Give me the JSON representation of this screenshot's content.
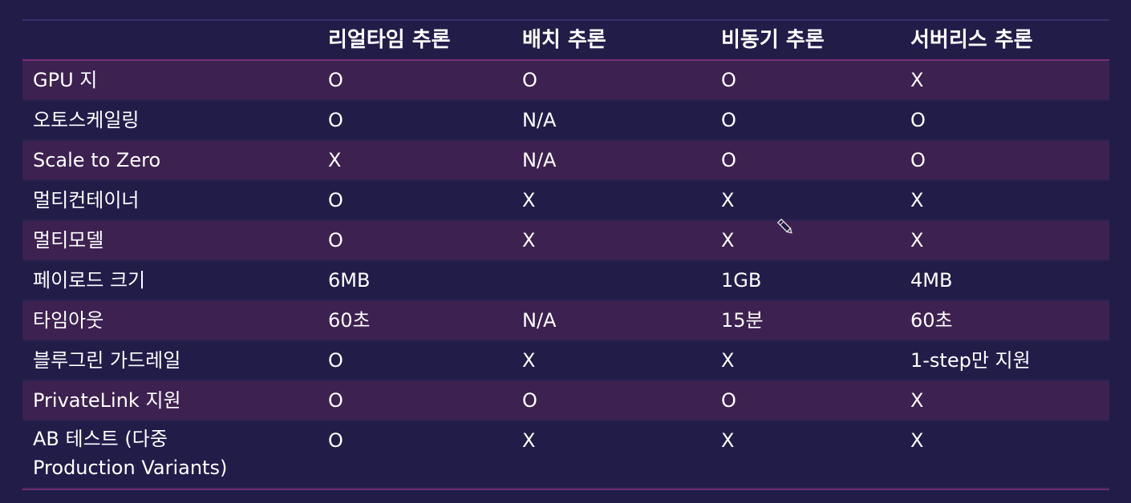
{
  "table": {
    "headers": [
      "",
      "리얼타임 추론",
      "배치 추론",
      "비동기 추론",
      "서버리스 추론"
    ],
    "rows": [
      [
        "GPU 지",
        "O",
        "O",
        "O",
        "X"
      ],
      [
        "오토스케일링",
        "O",
        "N/A",
        "O",
        "O"
      ],
      [
        "Scale to Zero",
        "X",
        "N/A",
        "O",
        "O"
      ],
      [
        "멀티컨테이너",
        "O",
        "X",
        "X",
        "X"
      ],
      [
        "멀티모델",
        "O",
        "X",
        "X",
        "X"
      ],
      [
        "페이로드 크기",
        "6MB",
        "",
        "1GB",
        "4MB"
      ],
      [
        "타임아웃",
        "60초",
        "N/A",
        "15분",
        "60초"
      ],
      [
        "블루그린 가드레일",
        "O",
        "X",
        "X",
        "1-step만 지원"
      ],
      [
        "PrivateLink 지원",
        "O",
        "O",
        "O",
        "X"
      ],
      [
        "AB 테스트 (다중\nProduction Variants)",
        "O",
        "X",
        "X",
        "X"
      ]
    ]
  },
  "cursor": {
    "icon": "pencil-icon"
  }
}
